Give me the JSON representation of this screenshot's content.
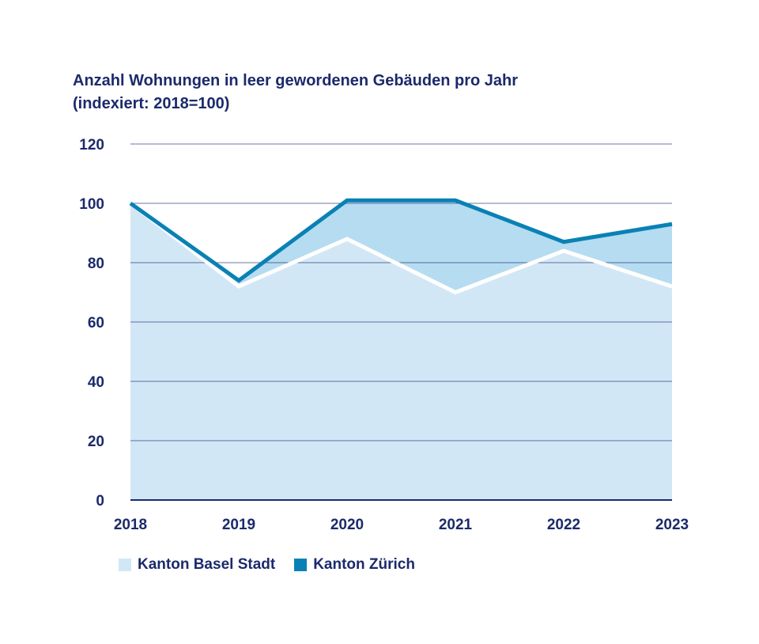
{
  "title_line1": "Anzahl Wohnungen in leer gewordenen Gebäuden pro Jahr",
  "title_line2": "(indexiert: 2018=100)",
  "colors": {
    "basel_fill": "#d2e7f6",
    "zurich_fill": "#b5dcf1",
    "zurich_line": "#0a81b5",
    "basel_line": "#ffffff",
    "grid": "#1b2a6b",
    "text": "#1b2a6b"
  },
  "chart_data": {
    "type": "area",
    "title": "Anzahl Wohnungen in leer gewordenen Gebäuden pro Jahr (indexiert: 2018=100)",
    "categories": [
      "2018",
      "2019",
      "2020",
      "2021",
      "2022",
      "2023"
    ],
    "series": [
      {
        "name": "Kanton Basel Stadt",
        "values": [
          100,
          72,
          88,
          70,
          84,
          72
        ]
      },
      {
        "name": "Kanton Zürich",
        "values": [
          100,
          74,
          101,
          101,
          87,
          93
        ]
      }
    ],
    "y_ticks": [
      "0",
      "20",
      "40",
      "60",
      "80",
      "100",
      "120"
    ],
    "ylim": [
      0,
      120
    ],
    "grid": true,
    "legend": "bottom-left"
  }
}
